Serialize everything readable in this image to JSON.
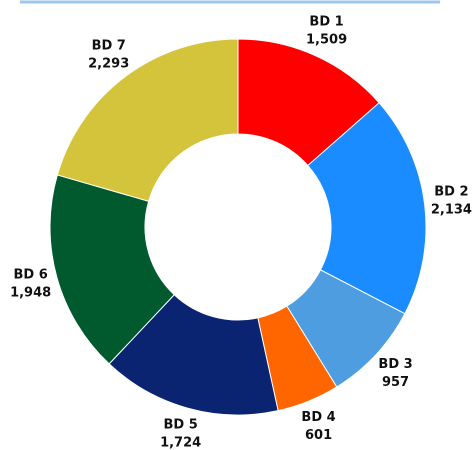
{
  "chart_data": {
    "type": "donut",
    "categories": [
      "BD 1",
      "BD 2",
      "BD 3",
      "BD 4",
      "BD 5",
      "BD 6",
      "BD 7"
    ],
    "values": [
      1509,
      2134,
      957,
      601,
      1724,
      1948,
      2293
    ],
    "value_labels": [
      "1,509",
      "2,134",
      "957",
      "601",
      "1,724",
      "1,948",
      "2,293"
    ],
    "colors": [
      "#ff0000",
      "#1a8cff",
      "#4d9de0",
      "#ff6600",
      "#0a2472",
      "#005a2e",
      "#d4c43c"
    ]
  }
}
